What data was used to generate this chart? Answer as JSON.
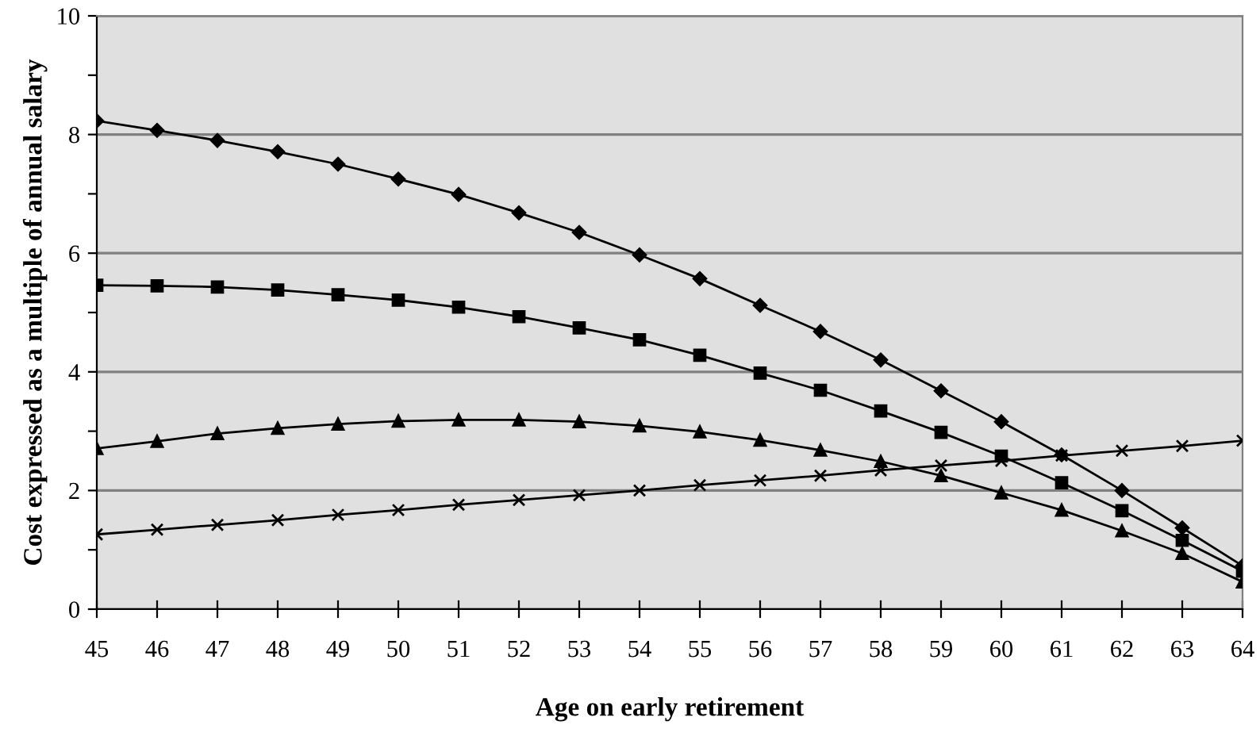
{
  "chart_data": {
    "type": "line",
    "xlabel": "Age on early retirement",
    "ylabel": "Cost expressed as a multiple of annual salary",
    "categories": [
      "45",
      "46",
      "47",
      "48",
      "49",
      "50",
      "51",
      "52",
      "53",
      "54",
      "55",
      "56",
      "57",
      "58",
      "59",
      "60",
      "61",
      "62",
      "63",
      "64"
    ],
    "series": [
      {
        "color": "#000000",
        "marker": "diamond",
        "values": [
          8.23,
          8.07,
          7.9,
          7.71,
          7.5,
          7.25,
          6.99,
          6.68,
          6.35,
          5.97,
          5.57,
          5.12,
          4.68,
          4.2,
          3.68,
          3.16,
          2.6,
          2.0,
          1.37,
          0.73
        ]
      },
      {
        "color": "#000000",
        "marker": "square",
        "values": [
          5.46,
          5.45,
          5.43,
          5.38,
          5.3,
          5.21,
          5.09,
          4.93,
          4.74,
          4.54,
          4.28,
          3.98,
          3.69,
          3.34,
          2.98,
          2.58,
          2.13,
          1.66,
          1.16,
          0.64
        ]
      },
      {
        "color": "#000000",
        "marker": "triangle",
        "values": [
          2.71,
          2.83,
          2.96,
          3.05,
          3.12,
          3.17,
          3.19,
          3.19,
          3.16,
          3.09,
          2.99,
          2.85,
          2.68,
          2.49,
          2.25,
          1.96,
          1.67,
          1.32,
          0.94,
          0.46
        ]
      },
      {
        "color": "#000000",
        "marker": "cross",
        "values": [
          1.26,
          1.34,
          1.42,
          1.5,
          1.59,
          1.67,
          1.76,
          1.84,
          1.92,
          2.0,
          2.09,
          2.17,
          2.25,
          2.34,
          2.42,
          2.5,
          2.59,
          2.67,
          2.75,
          2.84
        ]
      }
    ],
    "ylim": [
      0,
      10
    ],
    "yticks": [
      0,
      {
        "value": 1,
        "label": null
      },
      2,
      {
        "value": 3,
        "label": null
      },
      4,
      {
        "value": 5,
        "label": null
      },
      6,
      {
        "value": 7,
        "label": null
      },
      8,
      {
        "value": 9,
        "label": null
      },
      10
    ],
    "grid": "y",
    "legend": false,
    "line_style": "solid"
  }
}
